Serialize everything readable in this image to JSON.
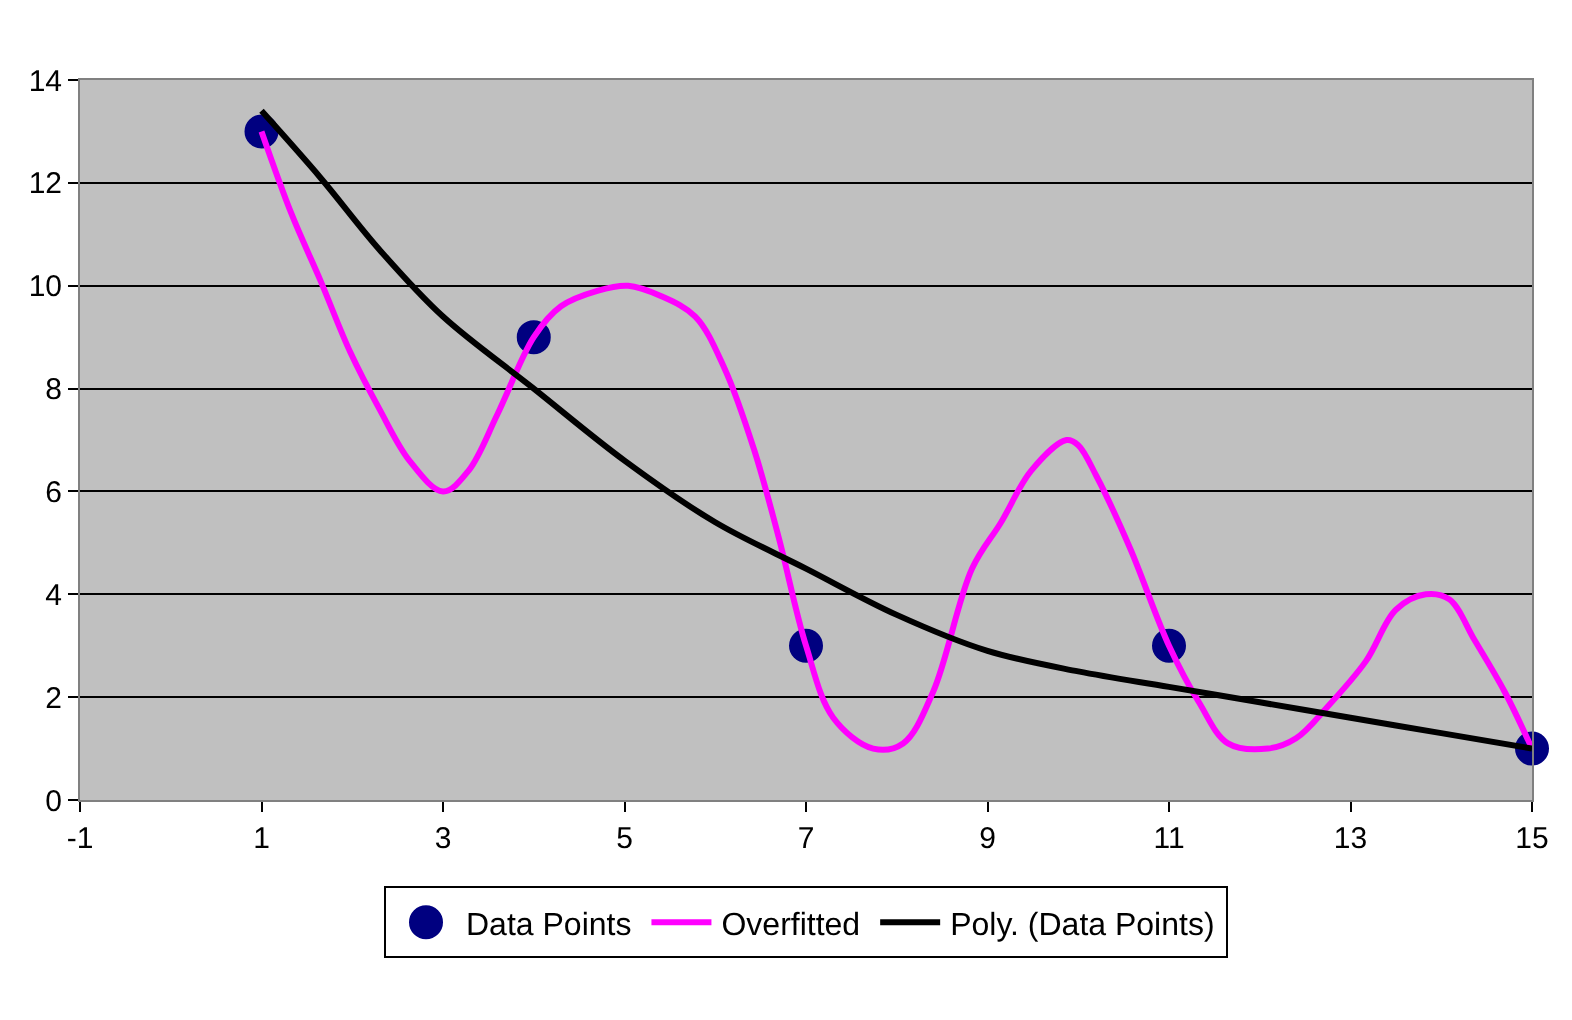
{
  "chart_data": {
    "type": "line",
    "xlim": [
      -1,
      15
    ],
    "xticks": [
      -1,
      1,
      3,
      5,
      7,
      9,
      11,
      13,
      15
    ],
    "ylim": [
      0,
      14
    ],
    "yticks": [
      0,
      2,
      4,
      6,
      8,
      10,
      12,
      14
    ],
    "grid": "y",
    "legend": "bottom",
    "line_style": "solid",
    "series": [
      {
        "name": "Data Points",
        "type": "scatter",
        "marker": "circle",
        "color": "#000080",
        "x": [
          1,
          4,
          7,
          11,
          15
        ],
        "values": [
          13,
          9,
          3,
          3,
          1
        ]
      },
      {
        "name": "Overfitted",
        "marker": "none",
        "color": "#ff00ff",
        "x": [
          1,
          1.33,
          1.65,
          1.98,
          2.3,
          2.63,
          3,
          3.28,
          3.6,
          4,
          4.3,
          4.7,
          5.04,
          5.4,
          5.78,
          6.1,
          6.43,
          6.7,
          7,
          7.3,
          7.74,
          8.07,
          8.4,
          8.83,
          9.15,
          9.48,
          9.87,
          10,
          10.2,
          10.57,
          11,
          11.33,
          11.65,
          12.09,
          12.4,
          12.74,
          13.17,
          13.5,
          13.83,
          14.09,
          14.37,
          14.7,
          15
        ],
        "values": [
          13,
          11.4,
          10.1,
          8.7,
          7.6,
          6.6,
          6,
          6.4,
          7.5,
          9,
          9.6,
          9.9,
          10,
          9.8,
          9.4,
          8.4,
          6.8,
          5.1,
          3,
          1.6,
          1,
          1.1,
          2.1,
          4.5,
          5.4,
          6.4,
          7,
          6.9,
          6.3,
          4.9,
          3,
          1.9,
          1.1,
          1,
          1.2,
          1.8,
          2.7,
          3.7,
          4,
          3.9,
          3.1,
          2.1,
          1
        ]
      },
      {
        "name": "Poly. (Data Points)",
        "marker": "none",
        "color": "#000000",
        "x": [
          1,
          1.65,
          2.3,
          3,
          4,
          5,
          6,
          7,
          8,
          9,
          10,
          11,
          12,
          13,
          14,
          15
        ],
        "values": [
          13.4,
          12.1,
          10.7,
          9.4,
          8,
          6.6,
          5.4,
          4.5,
          3.6,
          2.9,
          2.5,
          2.2,
          1.9,
          1.6,
          1.3,
          1
        ]
      }
    ]
  }
}
